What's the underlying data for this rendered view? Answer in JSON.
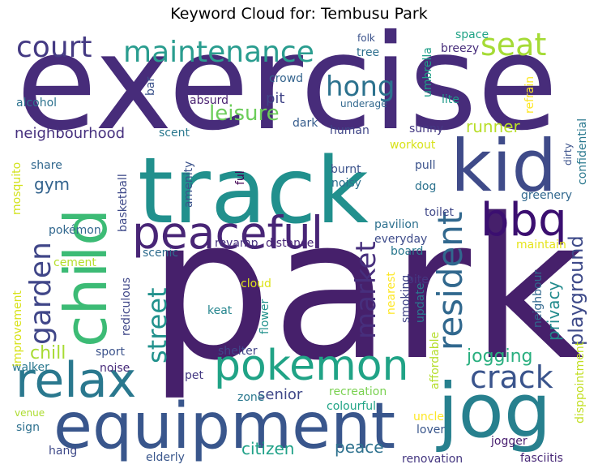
{
  "chart_data": {
    "type": "word_cloud",
    "title": "Keyword Cloud for: Tembusu Park",
    "palette": "viridis",
    "words": [
      {
        "text": "park",
        "color": "#46206b"
      },
      {
        "text": "exercise",
        "color": "#472c7a"
      },
      {
        "text": "track",
        "color": "#21908d"
      },
      {
        "text": "equipment",
        "color": "#39568c"
      },
      {
        "text": "jog",
        "color": "#27808e"
      },
      {
        "text": "child",
        "color": "#3cbb75"
      },
      {
        "text": "kid",
        "color": "#3f4b89"
      },
      {
        "text": "peaceful",
        "color": "#482576"
      },
      {
        "text": "pokemon",
        "color": "#20a386"
      },
      {
        "text": "bbq",
        "color": "#3b0f70"
      },
      {
        "text": "relax",
        "color": "#2a788e"
      },
      {
        "text": "maintenance",
        "color": "#2a9d8f"
      },
      {
        "text": "court",
        "color": "#443a83"
      },
      {
        "text": "seat",
        "color": "#a5db36"
      },
      {
        "text": "resident",
        "color": "#31688e"
      },
      {
        "text": "crack",
        "color": "#3a548c"
      },
      {
        "text": "garden",
        "color": "#404688"
      },
      {
        "text": "market",
        "color": "#472f7d"
      },
      {
        "text": "street",
        "color": "#21918c"
      },
      {
        "text": "hong",
        "color": "#2c728e"
      },
      {
        "text": "leisure",
        "color": "#6ccd5a"
      },
      {
        "text": "playground",
        "color": "#3e4a89"
      },
      {
        "text": "jogging",
        "color": "#29af7f"
      },
      {
        "text": "citizen",
        "color": "#1fa188"
      },
      {
        "text": "peace",
        "color": "#2d718e"
      },
      {
        "text": "chill",
        "color": "#a8db34"
      },
      {
        "text": "senior",
        "color": "#3f4788"
      },
      {
        "text": "privacy",
        "color": "#228b8d"
      },
      {
        "text": "runner",
        "color": "#b8de29"
      },
      {
        "text": "neighbourhood",
        "color": "#46307e"
      },
      {
        "text": "gym",
        "color": "#33638d"
      },
      {
        "text": "pit",
        "color": "#414487"
      },
      {
        "text": "crowd",
        "color": "#33638d"
      },
      {
        "text": "alcohol",
        "color": "#2c728e"
      },
      {
        "text": "absurd",
        "color": "#481f70"
      },
      {
        "text": "dark",
        "color": "#365c8d"
      },
      {
        "text": "human",
        "color": "#404688"
      },
      {
        "text": "scent",
        "color": "#2a788e"
      },
      {
        "text": "sunny",
        "color": "#443983"
      },
      {
        "text": "workout",
        "color": "#d8e219"
      },
      {
        "text": "burnt",
        "color": "#3b528b"
      },
      {
        "text": "noisy",
        "color": "#2e6e8e"
      },
      {
        "text": "pull",
        "color": "#3b528b"
      },
      {
        "text": "dog",
        "color": "#2c728e"
      },
      {
        "text": "toilet",
        "color": "#3f4788"
      },
      {
        "text": "pavilion",
        "color": "#2d708e"
      },
      {
        "text": "everyday",
        "color": "#3e4c8a"
      },
      {
        "text": "board",
        "color": "#2a788e"
      },
      {
        "text": "distance",
        "color": "#482677"
      },
      {
        "text": "revamp",
        "color": "#46327e"
      },
      {
        "text": "scenic",
        "color": "#2f6c8e"
      },
      {
        "text": "pokémon",
        "color": "#31678e"
      },
      {
        "text": "cement",
        "color": "#b5de2b"
      },
      {
        "text": "cloud",
        "color": "#dde318"
      },
      {
        "text": "keat",
        "color": "#25858e"
      },
      {
        "text": "shelter",
        "color": "#404588"
      },
      {
        "text": "sport",
        "color": "#3b528b"
      },
      {
        "text": "noise",
        "color": "#472a7a"
      },
      {
        "text": "walker",
        "color": "#2a788e"
      },
      {
        "text": "pet",
        "color": "#443983"
      },
      {
        "text": "zone",
        "color": "#2a788e"
      },
      {
        "text": "recreation",
        "color": "#7ad151"
      },
      {
        "text": "colourful",
        "color": "#20a486"
      },
      {
        "text": "sign",
        "color": "#2d708e"
      },
      {
        "text": "venue",
        "color": "#addc30"
      },
      {
        "text": "hang",
        "color": "#3e4989"
      },
      {
        "text": "elderly",
        "color": "#39568c"
      },
      {
        "text": "renovation",
        "color": "#453781"
      },
      {
        "text": "jogger",
        "color": "#481d6f"
      },
      {
        "text": "fasciitis",
        "color": "#482878"
      },
      {
        "text": "lover",
        "color": "#39568c"
      },
      {
        "text": "uncle",
        "color": "#fde725"
      },
      {
        "text": "folk",
        "color": "#3b528b"
      },
      {
        "text": "tree",
        "color": "#2e6f8e"
      },
      {
        "text": "space",
        "color": "#20a386"
      },
      {
        "text": "breezy",
        "color": "#472d7b"
      },
      {
        "text": "underage",
        "color": "#31688e"
      },
      {
        "text": "lite",
        "color": "#1f9a8a"
      },
      {
        "text": "bar",
        "color": "#3b528b"
      },
      {
        "text": "umbrella",
        "color": "#1f9f88"
      },
      {
        "text": "refrain",
        "color": "#fde725"
      },
      {
        "text": "confidential",
        "color": "#2a788e"
      },
      {
        "text": "dirty",
        "color": "#3b528b"
      },
      {
        "text": "greenery",
        "color": "#31688e"
      },
      {
        "text": "maintain",
        "color": "#e5e419"
      },
      {
        "text": "neighbour",
        "color": "#31688e"
      },
      {
        "text": "disppointment",
        "color": "#c2df23"
      },
      {
        "text": "nearest",
        "color": "#fde725"
      },
      {
        "text": "smoking",
        "color": "#414487"
      },
      {
        "text": "update",
        "color": "#2a788e"
      },
      {
        "text": "affordable",
        "color": "#b5de2b"
      },
      {
        "text": "bite",
        "color": "#453781"
      },
      {
        "text": "flower",
        "color": "#21918c"
      },
      {
        "text": "ful",
        "color": "#440154"
      },
      {
        "text": "amenity",
        "color": "#3b528b"
      },
      {
        "text": "basketball",
        "color": "#3e4989"
      },
      {
        "text": "share",
        "color": "#31688e"
      },
      {
        "text": "mosquito",
        "color": "#d2e21b"
      },
      {
        "text": "rediculous",
        "color": "#3f4788"
      },
      {
        "text": "improvement",
        "color": "#d8e219"
      }
    ]
  }
}
